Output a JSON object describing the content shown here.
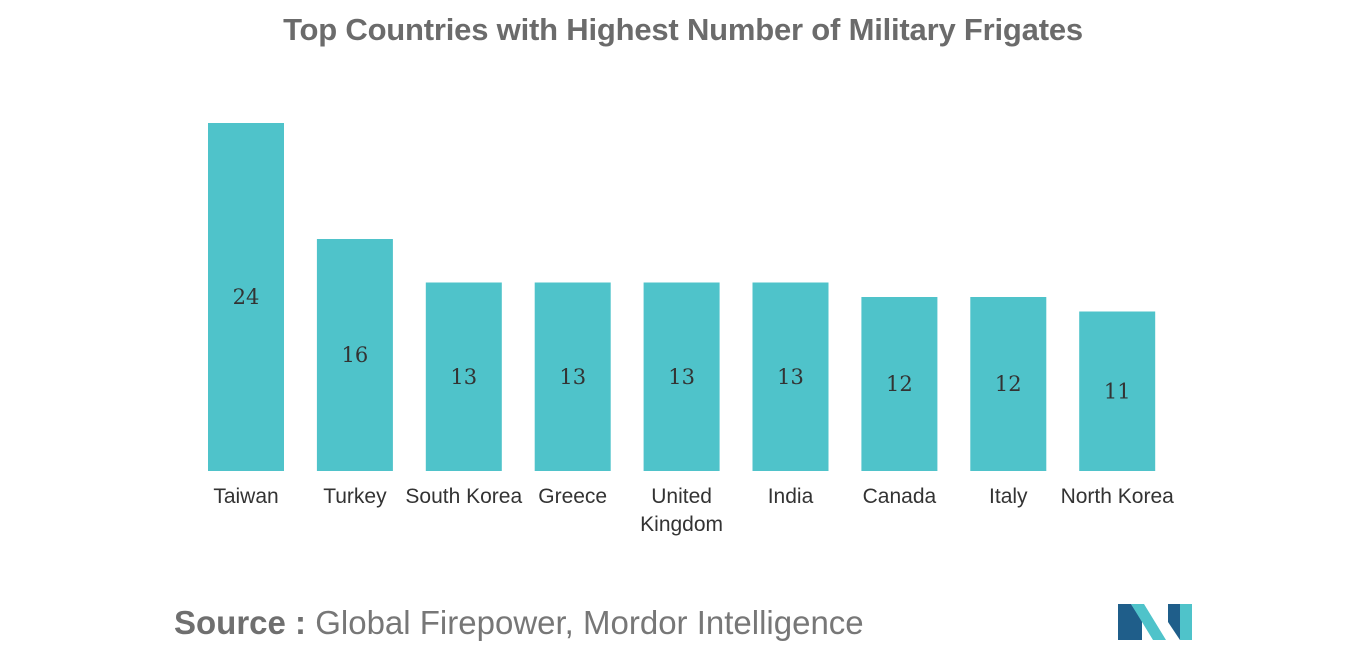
{
  "chart_data": {
    "type": "bar",
    "title": "Top Countries with Highest Number of Military Frigates",
    "categories": [
      "Taiwan",
      "Turkey",
      "South Korea",
      "Greece",
      "United Kingdom",
      "India",
      "Canada",
      "Italy",
      "North Korea"
    ],
    "category_lines": [
      [
        "Taiwan"
      ],
      [
        "Turkey"
      ],
      [
        "South Korea"
      ],
      [
        "Greece"
      ],
      [
        "United",
        "Kingdom"
      ],
      [
        "India"
      ],
      [
        "Canada"
      ],
      [
        "Italy"
      ],
      [
        "North Korea"
      ]
    ],
    "values": [
      24,
      16,
      13,
      13,
      13,
      13,
      12,
      12,
      11
    ],
    "xlabel": "",
    "ylabel": "",
    "ylim": [
      0,
      24
    ],
    "grid": false,
    "legend": "none",
    "data_labels": "inside-bar-center",
    "bar_color": "#4fc3ca"
  },
  "source": {
    "prefix": "Source :",
    "text": "Global Firepower, Mordor Intelligence"
  },
  "colors": {
    "bar": "#4fc3ca",
    "logo_dark": "#1f5e8a",
    "logo_light": "#4fc3ca"
  }
}
